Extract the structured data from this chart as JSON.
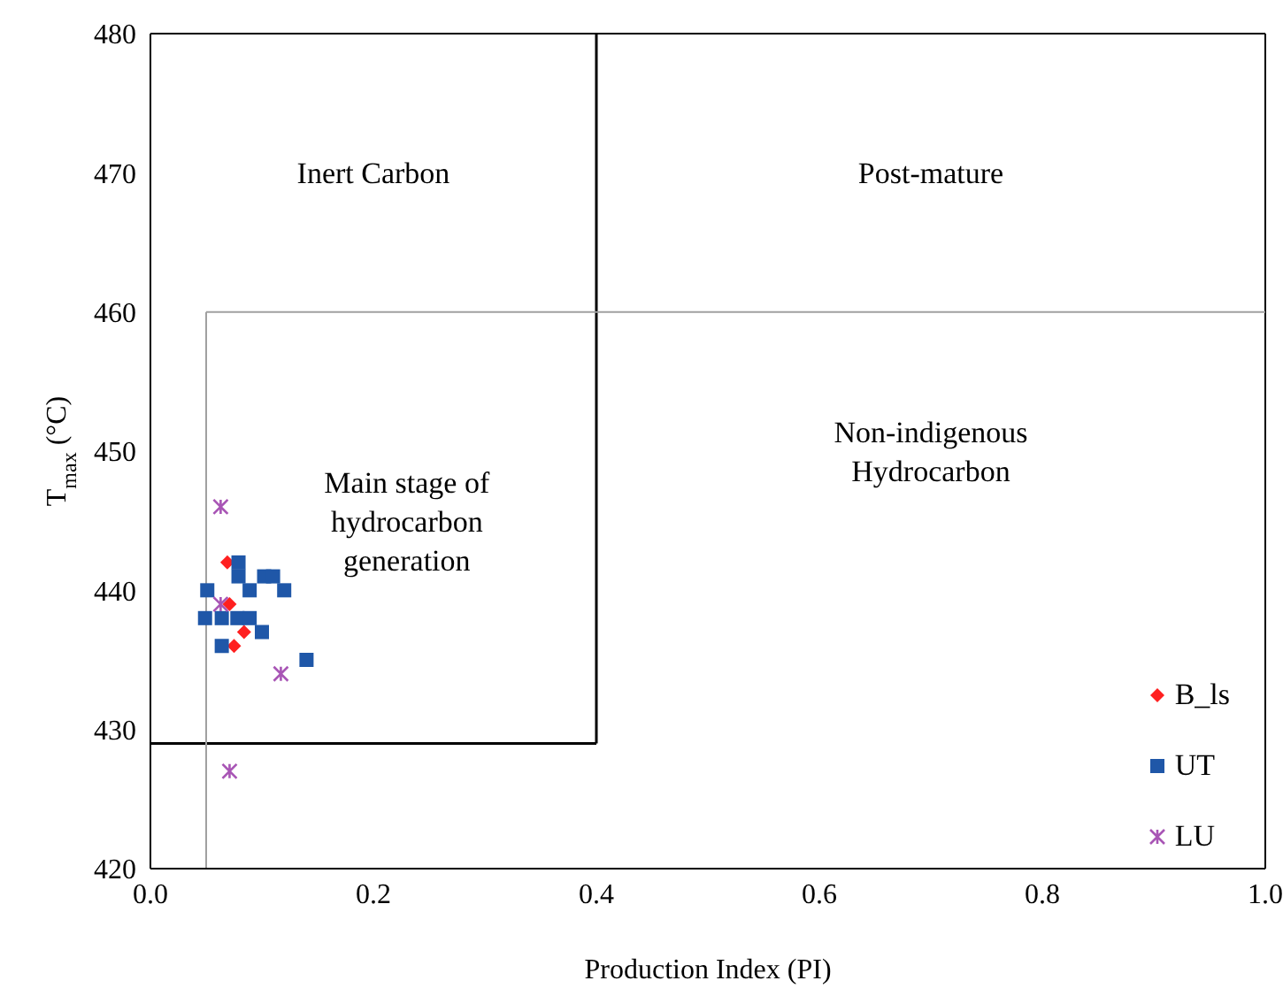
{
  "chart_data": {
    "type": "scatter",
    "xlabel": "Production Index (PI)",
    "ylabel": "T$_{max}$ (°C)",
    "xlim": [
      0,
      1
    ],
    "xticks": [
      {
        "value": 0,
        "label": "0.0"
      },
      {
        "value": 0.2,
        "label": "0.2"
      },
      {
        "value": 0.4,
        "label": "0.4"
      },
      {
        "value": 0.6,
        "label": "0.6"
      },
      {
        "value": 0.8,
        "label": "0.8"
      },
      {
        "value": 1,
        "label": "1.0"
      }
    ],
    "ylim": [
      420,
      480
    ],
    "yticks": [
      420,
      430,
      440,
      450,
      460,
      470,
      480
    ],
    "legend": "bottom right",
    "series": [
      {
        "name": "B_ls",
        "color": "#ff2020",
        "marker": "diamond",
        "x": [
          0.069,
          0.071,
          0.084,
          0.075
        ],
        "values": [
          442,
          439,
          437,
          436
        ]
      },
      {
        "name": "UT",
        "color": "#1f57a8",
        "marker": "square",
        "x": [
          0.079,
          0.079,
          0.102,
          0.11,
          0.051,
          0.089,
          0.12,
          0.049,
          0.064,
          0.078,
          0.089,
          0.1,
          0.064,
          0.14
        ],
        "values": [
          442,
          441,
          441,
          441,
          440,
          440,
          440,
          438,
          438,
          438,
          438,
          437,
          436,
          435
        ]
      },
      {
        "name": "LU",
        "color": "#a855b5",
        "marker": "cross",
        "x": [
          0.063,
          0.063,
          0.117,
          0.071
        ],
        "values": [
          446,
          439,
          434,
          427
        ]
      }
    ],
    "ref_lines": [
      {
        "axis": "x",
        "value": 0.4,
        "color": "#000000"
      },
      {
        "axis": "y",
        "value": 429,
        "color": "#000000"
      },
      {
        "axis": "x",
        "value": 0.05,
        "color": "#a0a0a0"
      },
      {
        "axis": "y",
        "value": 460,
        "color": "#a0a0a0"
      }
    ],
    "annotations": [
      "Inert Carbon",
      "Post-mature",
      "Main stage of\nhydrocarbon\ngeneration",
      "Non-indigenous\nHydrocarbon"
    ]
  }
}
